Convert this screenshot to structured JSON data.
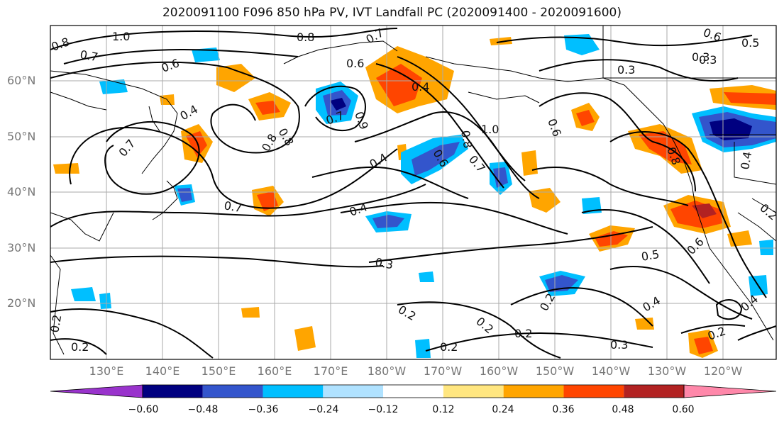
{
  "title": "2020091100 F096 850 hPa PV, IVT Landfall PC (2020091400 - 2020091600)",
  "lat_labels": [
    "60°N",
    "50°N",
    "40°N",
    "30°N",
    "20°N"
  ],
  "lon_labels": [
    "130°E",
    "140°E",
    "150°E",
    "160°E",
    "170°E",
    "180°W",
    "170°W",
    "160°W",
    "150°W",
    "140°W",
    "130°W",
    "120°W"
  ],
  "colorbar": {
    "ticks": [
      "−0.60",
      "−0.48",
      "−0.36",
      "−0.24",
      "−0.12",
      "0.12",
      "0.24",
      "0.36",
      "0.48",
      "0.60"
    ],
    "colors": [
      "#9933cc",
      "#000080",
      "#3355cc",
      "#00bfff",
      "#b0e2ff",
      "#ffffff",
      "#ffe680",
      "#ffa500",
      "#ff4500",
      "#b22222",
      "#ff88aa"
    ]
  },
  "contour_labels": [
    "1.0",
    "0.8",
    "0.7",
    "0.8",
    "0.7",
    "0.6",
    "0.6",
    "0.5",
    "0.3",
    "0.3",
    "0.6",
    "0.4",
    "0.4",
    "0.7",
    "0.8",
    "0.8",
    "0.6",
    "0.7",
    "0.9",
    "0.6",
    "0.8",
    "1.0",
    "0.4",
    "0.7",
    "0.8",
    "0.7",
    "0.4",
    "0.2",
    "0.4",
    "0.3",
    "0.5",
    "0.6",
    "0.2",
    "0.2",
    "0.2",
    "0.2",
    "0.2",
    "0.4",
    "0.4",
    "0.2",
    "0.3",
    "0.2",
    "0.3",
    "0.2"
  ]
}
